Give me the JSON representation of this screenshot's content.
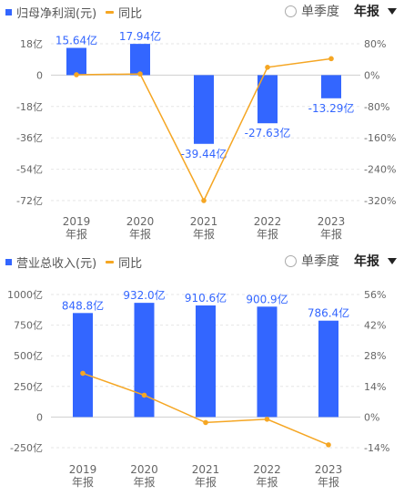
{
  "chart_data": [
    {
      "type": "bar",
      "legend": {
        "bar_label": "归母净利润(元)",
        "line_label": "同比",
        "placement": "top-left"
      },
      "controls": {
        "quarter_label": "单季度",
        "period_label": "年报"
      },
      "categories": [
        [
          "2019",
          "年报"
        ],
        [
          "2020",
          "年报"
        ],
        [
          "2021",
          "年报"
        ],
        [
          "2022",
          "年报"
        ],
        [
          "2023",
          "年报"
        ]
      ],
      "bar_series": {
        "name": "归母净利润(元)",
        "values": [
          15.64,
          17.94,
          -39.44,
          -27.63,
          -13.29
        ],
        "labels": [
          "15.64亿",
          "17.94亿",
          "-39.44亿",
          "-27.63亿",
          "-13.29亿"
        ],
        "color": "#3366ff"
      },
      "line_series": {
        "name": "同比",
        "values": [
          1,
          3,
          -320,
          20,
          42
        ],
        "color": "#f5a623"
      },
      "left_axis": {
        "ticks": [
          18,
          0,
          -18,
          -36,
          -54,
          -72
        ],
        "tick_labels": [
          "18亿",
          "0",
          "-18亿",
          "-36亿",
          "-54亿",
          "-72亿"
        ],
        "ylim": [
          -72,
          18
        ]
      },
      "right_axis": {
        "ticks": [
          80,
          0,
          -80,
          -160,
          -240,
          -320
        ],
        "tick_labels": [
          "80%",
          "0%",
          "-80%",
          "-160%",
          "-240%",
          "-320%"
        ],
        "ylim": [
          -320,
          80
        ]
      },
      "grid": true
    },
    {
      "type": "bar",
      "legend": {
        "bar_label": "营业总收入(元)",
        "line_label": "同比",
        "placement": "top-left"
      },
      "controls": {
        "quarter_label": "单季度",
        "period_label": "年报"
      },
      "categories": [
        [
          "2019",
          "年报"
        ],
        [
          "2020",
          "年报"
        ],
        [
          "2021",
          "年报"
        ],
        [
          "2022",
          "年报"
        ],
        [
          "2023",
          "年报"
        ]
      ],
      "bar_series": {
        "name": "营业总收入(元)",
        "values": [
          848.8,
          932.0,
          910.6,
          900.9,
          786.4
        ],
        "labels": [
          "848.8亿",
          "932.0亿",
          "910.6亿",
          "900.9亿",
          "786.4亿"
        ],
        "color": "#3366ff"
      },
      "line_series": {
        "name": "同比",
        "values": [
          20,
          10,
          -2.5,
          -1,
          -12.7
        ],
        "color": "#f5a623"
      },
      "left_axis": {
        "ticks": [
          1000,
          750,
          500,
          250,
          0,
          -250
        ],
        "tick_labels": [
          "1000亿",
          "750亿",
          "500亿",
          "250亿",
          "0",
          "-250亿"
        ],
        "ylim": [
          -250,
          1000
        ]
      },
      "right_axis": {
        "ticks": [
          56,
          42,
          28,
          14,
          0,
          -14
        ],
        "tick_labels": [
          "56%",
          "42%",
          "28%",
          "14%",
          "0%",
          "-14%"
        ],
        "ylim": [
          -14,
          56
        ]
      },
      "grid": true
    }
  ]
}
